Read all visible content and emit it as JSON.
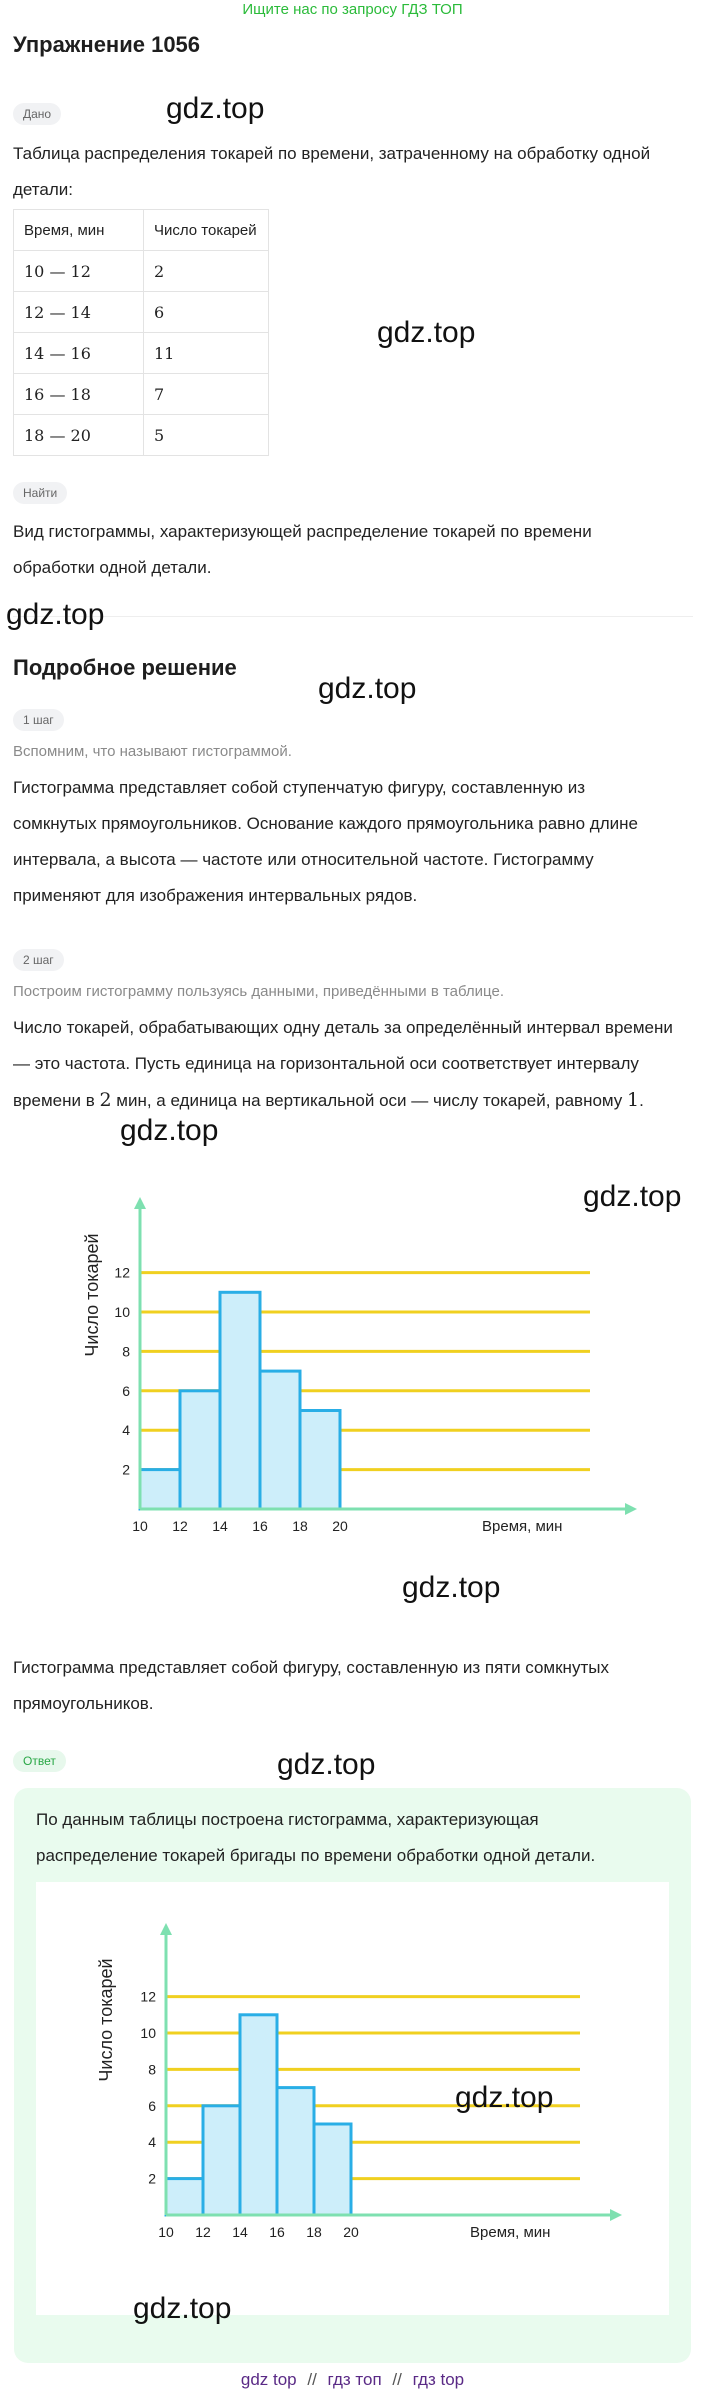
{
  "banner": "Ищите нас по запросу ГДЗ ТОП",
  "title": "Упражнение 1056",
  "given": {
    "pill": "Дано",
    "text": "Таблица распределения токарей по времени, затраченному на обработку одной детали:",
    "table": {
      "headers": [
        "Время, мин",
        "Число токарей"
      ],
      "rows": [
        [
          "10  —  12",
          "2"
        ],
        [
          "12  —  14",
          "6"
        ],
        [
          "14  —  16",
          "11"
        ],
        [
          "16  —  18",
          "7"
        ],
        [
          "18  —  20",
          "5"
        ]
      ]
    }
  },
  "find": {
    "pill": "Найти",
    "text": "Вид гистограммы, характеризующей распределение токарей по времени обработки одной детали."
  },
  "solution": {
    "heading": "Подробное решение",
    "step1": {
      "pill": "1 шаг",
      "hint": "Вспомним, что называют гистограммой.",
      "text": "Гистограмма представляет собой ступенчатую фигуру, составленную из сомкнутых прямоугольников. Основание каждого прямоугольника равно длине интервала, а высота — частоте или относительной частоте. Гистограмму применяют для изображения интервальных рядов."
    },
    "step2": {
      "pill": "2 шаг",
      "hint": "Построим гистограмму пользуясь данными, приведёнными в таблице.",
      "text_a": "Число токарей, обрабатывающих одну деталь за определённый интервал времени — это частота. Пусть единица на горизонтальной оси соответствует интервалу времени в ",
      "text_num1": "2",
      "text_b": " мин, а единица на вертикальной оси — числу токарей, равному ",
      "text_num2": "1",
      "text_c": "."
    },
    "conclusion": "Гистограмма представляет собой фигуру, составленную из пяти сомкнутых прямоугольников."
  },
  "answer": {
    "pill": "Ответ",
    "text": "По данным таблицы построена гистограмма, характеризующая распределение токарей бригады по времени обработки одной детали."
  },
  "watermarks": [
    "gdz.top",
    "gdz.top",
    "gdz.top",
    "gdz.top",
    "gdz.top",
    "gdz.top",
    "gdz.top",
    "gdz.top",
    "gdz.top",
    "gdz.top"
  ],
  "footer": {
    "link1": "gdz top",
    "link2": "гдз топ",
    "link3": "гдз top",
    "sep": "//"
  },
  "colors": {
    "accent_green": "#2bbb3a",
    "bar_fill": "#cdeefa",
    "bar_stroke": "#29aee6",
    "gridline": "#f0d020",
    "axis": "#7ee0b0"
  },
  "chart_data": [
    {
      "type": "bar",
      "categories": [
        "10-12",
        "12-14",
        "14-16",
        "16-18",
        "18-20"
      ],
      "x_ticks": [
        "10",
        "12",
        "14",
        "16",
        "18",
        "20"
      ],
      "y_ticks": [
        "2",
        "4",
        "6",
        "8",
        "10",
        "12"
      ],
      "values": [
        2,
        6,
        11,
        7,
        5
      ],
      "xlabel": "Время, мин",
      "ylabel": "Число токарей",
      "ylim": [
        0,
        12
      ],
      "grid": true
    },
    {
      "type": "bar",
      "categories": [
        "10-12",
        "12-14",
        "14-16",
        "16-18",
        "18-20"
      ],
      "x_ticks": [
        "10",
        "12",
        "14",
        "16",
        "18",
        "20"
      ],
      "y_ticks": [
        "2",
        "4",
        "6",
        "8",
        "10",
        "12"
      ],
      "values": [
        2,
        6,
        11,
        7,
        5
      ],
      "xlabel": "Время, мин",
      "ylabel": "Число токарей",
      "ylim": [
        0,
        12
      ],
      "grid": true
    }
  ]
}
